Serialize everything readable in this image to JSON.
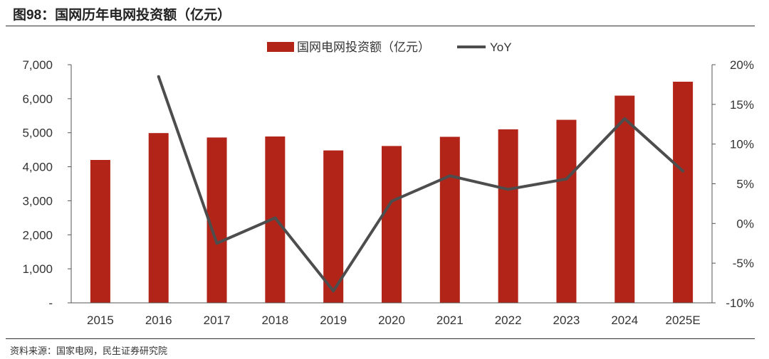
{
  "figure_title": "图98：国网历年电网投资额（亿元）",
  "source": "资料来源：国家电网，民生证券研究院",
  "colors": {
    "bar": "#b22418",
    "line": "#4d4d4d",
    "axis": "#555555"
  },
  "chart_data": {
    "type": "bar",
    "categories": [
      "2015",
      "2016",
      "2017",
      "2018",
      "2019",
      "2020",
      "2021",
      "2022",
      "2023",
      "2024",
      "2025E"
    ],
    "series": [
      {
        "name": "国网电网投资额（亿元）",
        "type": "bar",
        "axis": "left",
        "values": [
          4200,
          4990,
          4860,
          4890,
          4480,
          4610,
          4880,
          5100,
          5380,
          6090,
          6500
        ]
      },
      {
        "name": "YoY",
        "type": "line",
        "axis": "right",
        "values": [
          null,
          18.5,
          -2.5,
          0.7,
          -8.5,
          2.8,
          6.0,
          4.3,
          5.6,
          13.2,
          6.6
        ]
      }
    ],
    "y_left": {
      "min": 0,
      "max": 7000,
      "ticks": [
        0,
        1000,
        2000,
        3000,
        4000,
        5000,
        6000,
        7000
      ],
      "tick_labels": [
        "-",
        "1,000",
        "2,000",
        "3,000",
        "4,000",
        "5,000",
        "6,000",
        "7,000"
      ]
    },
    "y_right": {
      "min": -10,
      "max": 20,
      "ticks": [
        -10,
        -5,
        0,
        5,
        10,
        15,
        20
      ],
      "tick_labels": [
        "-10%",
        "-5%",
        "0%",
        "5%",
        "10%",
        "15%",
        "20%"
      ]
    },
    "legend_position": "top-center",
    "grid": false
  }
}
